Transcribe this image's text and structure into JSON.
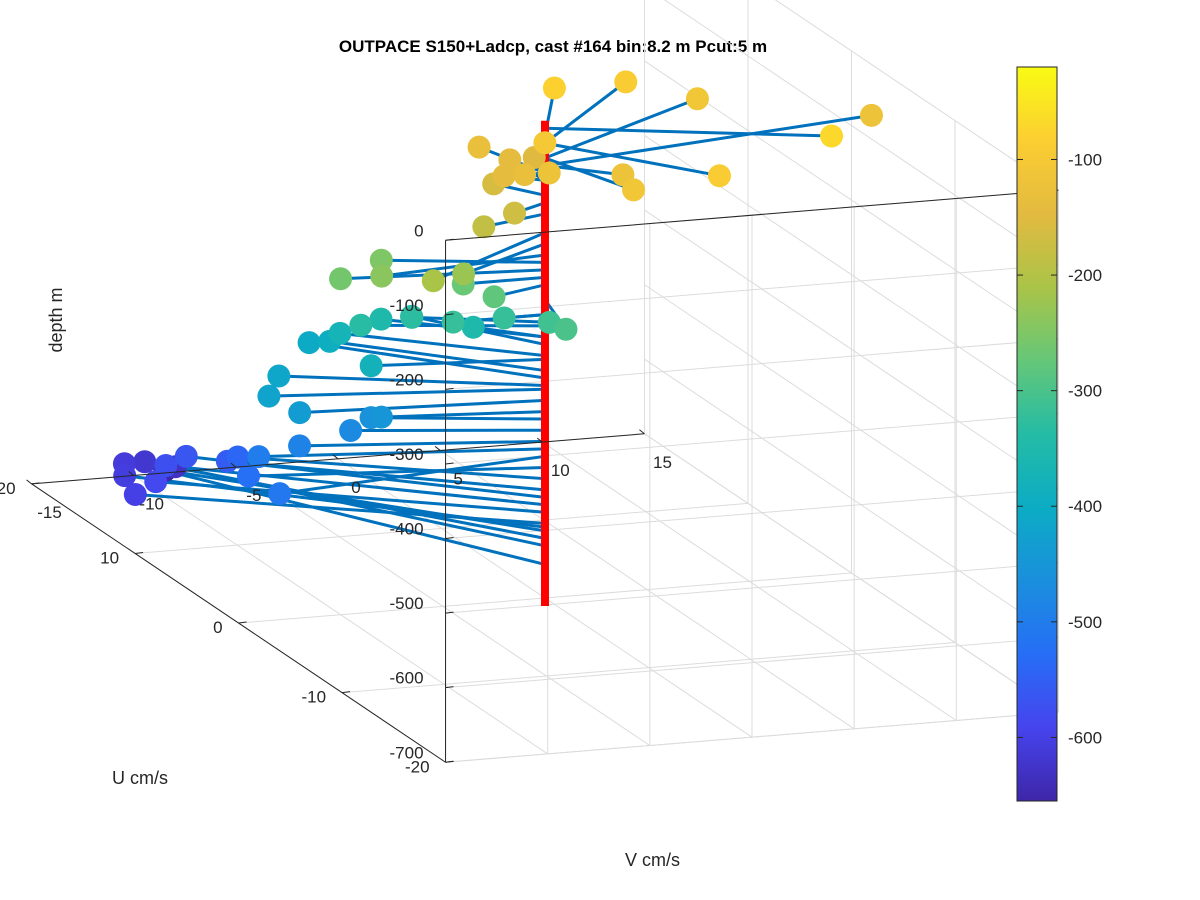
{
  "chart_data": {
    "type": "3d-stem-scatter",
    "title": "OUTPACE S150+Ladcp, cast #164 bin:8.2 m  Pcut:5 m",
    "xlabel": "V cm/s",
    "ylabel": "U cm/s",
    "zlabel": "depth m",
    "xlim": [
      -15,
      15
    ],
    "ylim": [
      -20,
      20
    ],
    "zlim": [
      -700,
      0
    ],
    "x_ticks": [
      "-15",
      "-10",
      "-5",
      "0",
      "5",
      "10",
      "15"
    ],
    "y_ticks": [
      "-20",
      "-10",
      "0",
      "10",
      "20"
    ],
    "z_ticks": [
      "0",
      "-100",
      "-200",
      "-300",
      "-400",
      "-500",
      "-600",
      "-700"
    ],
    "colorbar": {
      "label": "",
      "lim": [
        -655,
        -20
      ],
      "ticks": [
        "-100",
        "-200",
        "-300",
        "-400",
        "-500",
        "-600"
      ],
      "colormap": "parula"
    },
    "stem_color": "#0072BD",
    "axis_line_color": "#ff0000",
    "grid": true,
    "points": [
      {
        "v": 12.0,
        "u": -4.0,
        "z": -70
      },
      {
        "v": 5.5,
        "u": -6.0,
        "z": -90
      },
      {
        "v": 1.8,
        "u": -5.0,
        "z": -110
      },
      {
        "v": 2.8,
        "u": -2.0,
        "z": -120
      },
      {
        "v": 17.5,
        "u": 3.0,
        "z": -120
      },
      {
        "v": 10.5,
        "u": 6.0,
        "z": -110
      },
      {
        "v": 7.5,
        "u": 7.0,
        "z": -90
      },
      {
        "v": 3.5,
        "u": 6.0,
        "z": -80
      },
      {
        "v": 0.5,
        "u": 1.0,
        "z": -100
      },
      {
        "v": -0.3,
        "u": -1.0,
        "z": -120
      },
      {
        "v": -1.0,
        "u": 0.0,
        "z": -130
      },
      {
        "v": -1.5,
        "u": 1.0,
        "z": -140
      },
      {
        "v": -1.2,
        "u": 4.0,
        "z": -130
      },
      {
        "v": -0.2,
        "u": 3.0,
        "z": -140
      },
      {
        "v": 1.5,
        "u": 4.0,
        "z": -150
      },
      {
        "v": -1.5,
        "u": 2.0,
        "z": -160
      },
      {
        "v": -2.0,
        "u": -1.0,
        "z": -170
      },
      {
        "v": -3.5,
        "u": -1.0,
        "z": -185
      },
      {
        "v": -8.0,
        "u": -5.0,
        "z": -210
      },
      {
        "v": -5.5,
        "u": -3.0,
        "z": -225
      },
      {
        "v": -8.5,
        "u": -1.0,
        "z": -240
      },
      {
        "v": -7.0,
        "u": 2.0,
        "z": -250
      },
      {
        "v": -9.5,
        "u": 1.0,
        "z": -260
      },
      {
        "v": -4.0,
        "u": 0.0,
        "z": -270
      },
      {
        "v": -3.0,
        "u": -1.0,
        "z": -280
      },
      {
        "v": -1.0,
        "u": -4.0,
        "z": -300
      },
      {
        "v": -0.8,
        "u": -2.0,
        "z": -310
      },
      {
        "v": -2.0,
        "u": 0.0,
        "z": -320
      },
      {
        "v": -4.5,
        "u": 0.0,
        "z": -320
      },
      {
        "v": -5.5,
        "u": 2.0,
        "z": -330
      },
      {
        "v": -8.0,
        "u": 2.0,
        "z": -335
      },
      {
        "v": -6.0,
        "u": 4.0,
        "z": -350
      },
      {
        "v": -2.5,
        "u": 2.0,
        "z": -350
      },
      {
        "v": -4.0,
        "u": 5.0,
        "z": -360
      },
      {
        "v": -7.5,
        "u": 5.0,
        "z": -375
      },
      {
        "v": -8.0,
        "u": 1.0,
        "z": -380
      },
      {
        "v": -7.5,
        "u": 6.0,
        "z": -395
      },
      {
        "v": -8.0,
        "u": 7.0,
        "z": -405
      },
      {
        "v": -11.0,
        "u": 4.0,
        "z": -415
      },
      {
        "v": -12.5,
        "u": 2.0,
        "z": -420
      },
      {
        "v": -11.5,
        "u": 1.0,
        "z": -435
      },
      {
        "v": -7.5,
        "u": 1.0,
        "z": -450
      },
      {
        "v": -7.5,
        "u": 2.0,
        "z": -460
      },
      {
        "v": -8.5,
        "u": 2.0,
        "z": -475
      },
      {
        "v": -11.0,
        "u": 2.0,
        "z": -490
      },
      {
        "v": -13.0,
        "u": 2.0,
        "z": -500
      },
      {
        "v": -14.0,
        "u": -2.0,
        "z": -510
      },
      {
        "v": -13.5,
        "u": 2.0,
        "z": -525
      },
      {
        "v": -12.0,
        "u": 6.0,
        "z": -540
      },
      {
        "v": -12.0,
        "u": 7.0,
        "z": -555
      },
      {
        "v": -13.0,
        "u": 9.0,
        "z": -565
      },
      {
        "v": -14.0,
        "u": 9.0,
        "z": -575
      },
      {
        "v": -15.0,
        "u": 8.0,
        "z": -585
      },
      {
        "v": -16.0,
        "u": 8.0,
        "z": -600
      },
      {
        "v": -15.0,
        "u": 11.0,
        "z": -605
      },
      {
        "v": -14.0,
        "u": 13.0,
        "z": -610
      },
      {
        "v": -12.5,
        "u": 14.0,
        "z": -620
      },
      {
        "v": -11.0,
        "u": 14.0,
        "z": -630
      },
      {
        "v": -10.5,
        "u": 16.0,
        "z": -655
      }
    ]
  }
}
